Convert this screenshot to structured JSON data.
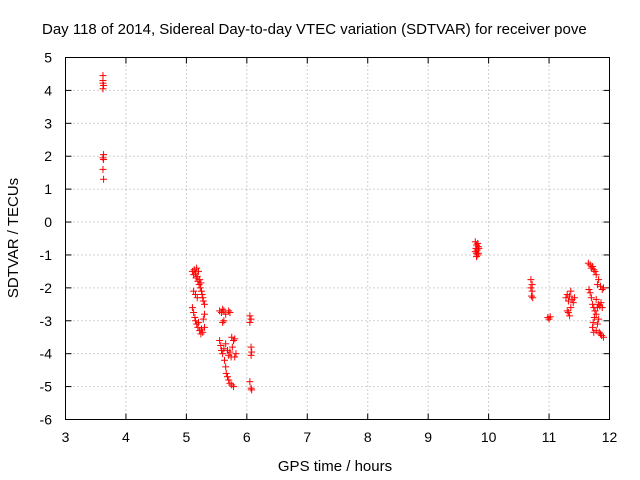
{
  "chart_data": {
    "type": "scatter",
    "title": "Day 118 of 2014, Sidereal Day-to-day VTEC variation (SDTVAR) for receiver pove",
    "xlabel": "GPS time / hours",
    "ylabel": "SDTVAR / TECUs",
    "xlim": [
      3,
      12
    ],
    "ylim": [
      -6,
      5
    ],
    "xticks": [
      "3",
      "4",
      "5",
      "6",
      "7",
      "8",
      "9",
      "10",
      "11",
      "12"
    ],
    "yticks": [
      "5",
      "4",
      "3",
      "2",
      "1",
      "0",
      "-1",
      "-2",
      "-3",
      "-4",
      "-5",
      "-6"
    ],
    "grid": true,
    "marker": "+",
    "marker_color": "#ff0000",
    "series": [
      {
        "name": "SDTVAR",
        "points": [
          [
            3.62,
            4.45
          ],
          [
            3.62,
            4.3
          ],
          [
            3.62,
            4.22
          ],
          [
            3.63,
            4.15
          ],
          [
            3.62,
            4.05
          ],
          [
            3.63,
            2.05
          ],
          [
            3.62,
            1.95
          ],
          [
            3.63,
            1.9
          ],
          [
            3.62,
            1.6
          ],
          [
            3.63,
            1.3
          ],
          [
            5.1,
            -1.5
          ],
          [
            5.12,
            -1.6
          ],
          [
            5.13,
            -1.45
          ],
          [
            5.15,
            -1.55
          ],
          [
            5.16,
            -1.7
          ],
          [
            5.17,
            -1.4
          ],
          [
            5.18,
            -1.65
          ],
          [
            5.19,
            -1.8
          ],
          [
            5.2,
            -1.5
          ],
          [
            5.21,
            -1.9
          ],
          [
            5.22,
            -1.75
          ],
          [
            5.23,
            -2.0
          ],
          [
            5.24,
            -1.85
          ],
          [
            5.25,
            -2.1
          ],
          [
            5.26,
            -2.2
          ],
          [
            5.27,
            -2.3
          ],
          [
            5.28,
            -2.4
          ],
          [
            5.3,
            -2.5
          ],
          [
            5.12,
            -2.1
          ],
          [
            5.15,
            -2.2
          ],
          [
            5.18,
            -2.3
          ],
          [
            5.1,
            -2.6
          ],
          [
            5.12,
            -2.75
          ],
          [
            5.14,
            -2.9
          ],
          [
            5.15,
            -3.0
          ],
          [
            5.17,
            -3.1
          ],
          [
            5.19,
            -3.2
          ],
          [
            5.2,
            -3.05
          ],
          [
            5.22,
            -3.3
          ],
          [
            5.24,
            -3.4
          ],
          [
            5.25,
            -3.25
          ],
          [
            5.27,
            -3.35
          ],
          [
            5.3,
            -3.2
          ],
          [
            5.3,
            -2.8
          ],
          [
            5.28,
            -2.95
          ],
          [
            5.55,
            -2.7
          ],
          [
            5.58,
            -2.75
          ],
          [
            5.6,
            -2.65
          ],
          [
            5.62,
            -2.7
          ],
          [
            5.65,
            -2.8
          ],
          [
            5.6,
            -3.05
          ],
          [
            5.62,
            -3.0
          ],
          [
            5.55,
            -3.6
          ],
          [
            5.57,
            -3.75
          ],
          [
            5.58,
            -3.9
          ],
          [
            5.6,
            -4.0
          ],
          [
            5.62,
            -3.85
          ],
          [
            5.63,
            -4.2
          ],
          [
            5.65,
            -4.4
          ],
          [
            5.66,
            -4.6
          ],
          [
            5.68,
            -4.7
          ],
          [
            5.7,
            -4.8
          ],
          [
            5.72,
            -4.9
          ],
          [
            5.75,
            -4.95
          ],
          [
            5.78,
            -5.0
          ],
          [
            5.65,
            -3.7
          ],
          [
            5.68,
            -3.9
          ],
          [
            5.7,
            -4.05
          ],
          [
            5.72,
            -3.95
          ],
          [
            5.74,
            -4.1
          ],
          [
            5.76,
            -3.8
          ],
          [
            5.78,
            -3.6
          ],
          [
            5.8,
            -3.55
          ],
          [
            5.75,
            -3.5
          ],
          [
            5.8,
            -4.1
          ],
          [
            5.82,
            -4.0
          ],
          [
            5.7,
            -2.7
          ],
          [
            5.72,
            -2.75
          ],
          [
            6.05,
            -2.85
          ],
          [
            6.07,
            -2.95
          ],
          [
            6.05,
            -3.05
          ],
          [
            6.07,
            -3.8
          ],
          [
            6.08,
            -3.95
          ],
          [
            6.07,
            -4.05
          ],
          [
            6.05,
            -4.85
          ],
          [
            6.07,
            -5.05
          ],
          [
            6.08,
            -5.1
          ],
          [
            9.78,
            -0.6
          ],
          [
            9.8,
            -0.7
          ],
          [
            9.82,
            -0.65
          ],
          [
            9.79,
            -0.8
          ],
          [
            9.81,
            -0.85
          ],
          [
            9.83,
            -0.75
          ],
          [
            9.78,
            -0.9
          ],
          [
            9.8,
            -0.95
          ],
          [
            9.82,
            -1.0
          ],
          [
            9.84,
            -0.8
          ],
          [
            9.8,
            -1.05
          ],
          [
            9.83,
            -0.95
          ],
          [
            10.7,
            -1.75
          ],
          [
            10.72,
            -1.9
          ],
          [
            10.7,
            -2.0
          ],
          [
            10.72,
            -2.1
          ],
          [
            10.71,
            -2.25
          ],
          [
            10.73,
            -2.3
          ],
          [
            10.98,
            -2.9
          ],
          [
            11.0,
            -2.95
          ],
          [
            11.02,
            -2.88
          ],
          [
            11.28,
            -2.3
          ],
          [
            11.3,
            -2.2
          ],
          [
            11.32,
            -2.4
          ],
          [
            11.34,
            -2.25
          ],
          [
            11.36,
            -2.1
          ],
          [
            11.38,
            -2.35
          ],
          [
            11.3,
            -2.7
          ],
          [
            11.32,
            -2.75
          ],
          [
            11.34,
            -2.85
          ],
          [
            11.4,
            -2.45
          ],
          [
            11.42,
            -2.3
          ],
          [
            11.36,
            -2.6
          ],
          [
            11.65,
            -1.25
          ],
          [
            11.68,
            -1.3
          ],
          [
            11.7,
            -1.4
          ],
          [
            11.72,
            -1.35
          ],
          [
            11.74,
            -1.45
          ],
          [
            11.76,
            -1.5
          ],
          [
            11.78,
            -1.6
          ],
          [
            11.66,
            -2.05
          ],
          [
            11.68,
            -2.15
          ],
          [
            11.7,
            -2.3
          ],
          [
            11.72,
            -2.5
          ],
          [
            11.74,
            -2.6
          ],
          [
            11.76,
            -2.7
          ],
          [
            11.75,
            -2.9
          ],
          [
            11.73,
            -3.05
          ],
          [
            11.72,
            -3.2
          ],
          [
            11.74,
            -3.35
          ],
          [
            11.78,
            -3.3
          ],
          [
            11.8,
            -3.1
          ],
          [
            11.82,
            -2.95
          ],
          [
            11.78,
            -2.8
          ],
          [
            11.8,
            -2.6
          ],
          [
            11.82,
            -2.5
          ],
          [
            11.84,
            -2.55
          ],
          [
            11.86,
            -2.45
          ],
          [
            11.88,
            -2.6
          ],
          [
            11.85,
            -1.95
          ],
          [
            11.88,
            -2.05
          ],
          [
            11.9,
            -2.0
          ],
          [
            11.82,
            -1.75
          ],
          [
            11.8,
            -1.9
          ],
          [
            11.78,
            -2.35
          ],
          [
            11.85,
            -3.4
          ],
          [
            11.87,
            -3.45
          ],
          [
            11.9,
            -3.5
          ],
          [
            11.83,
            -3.35
          ]
        ]
      }
    ]
  }
}
